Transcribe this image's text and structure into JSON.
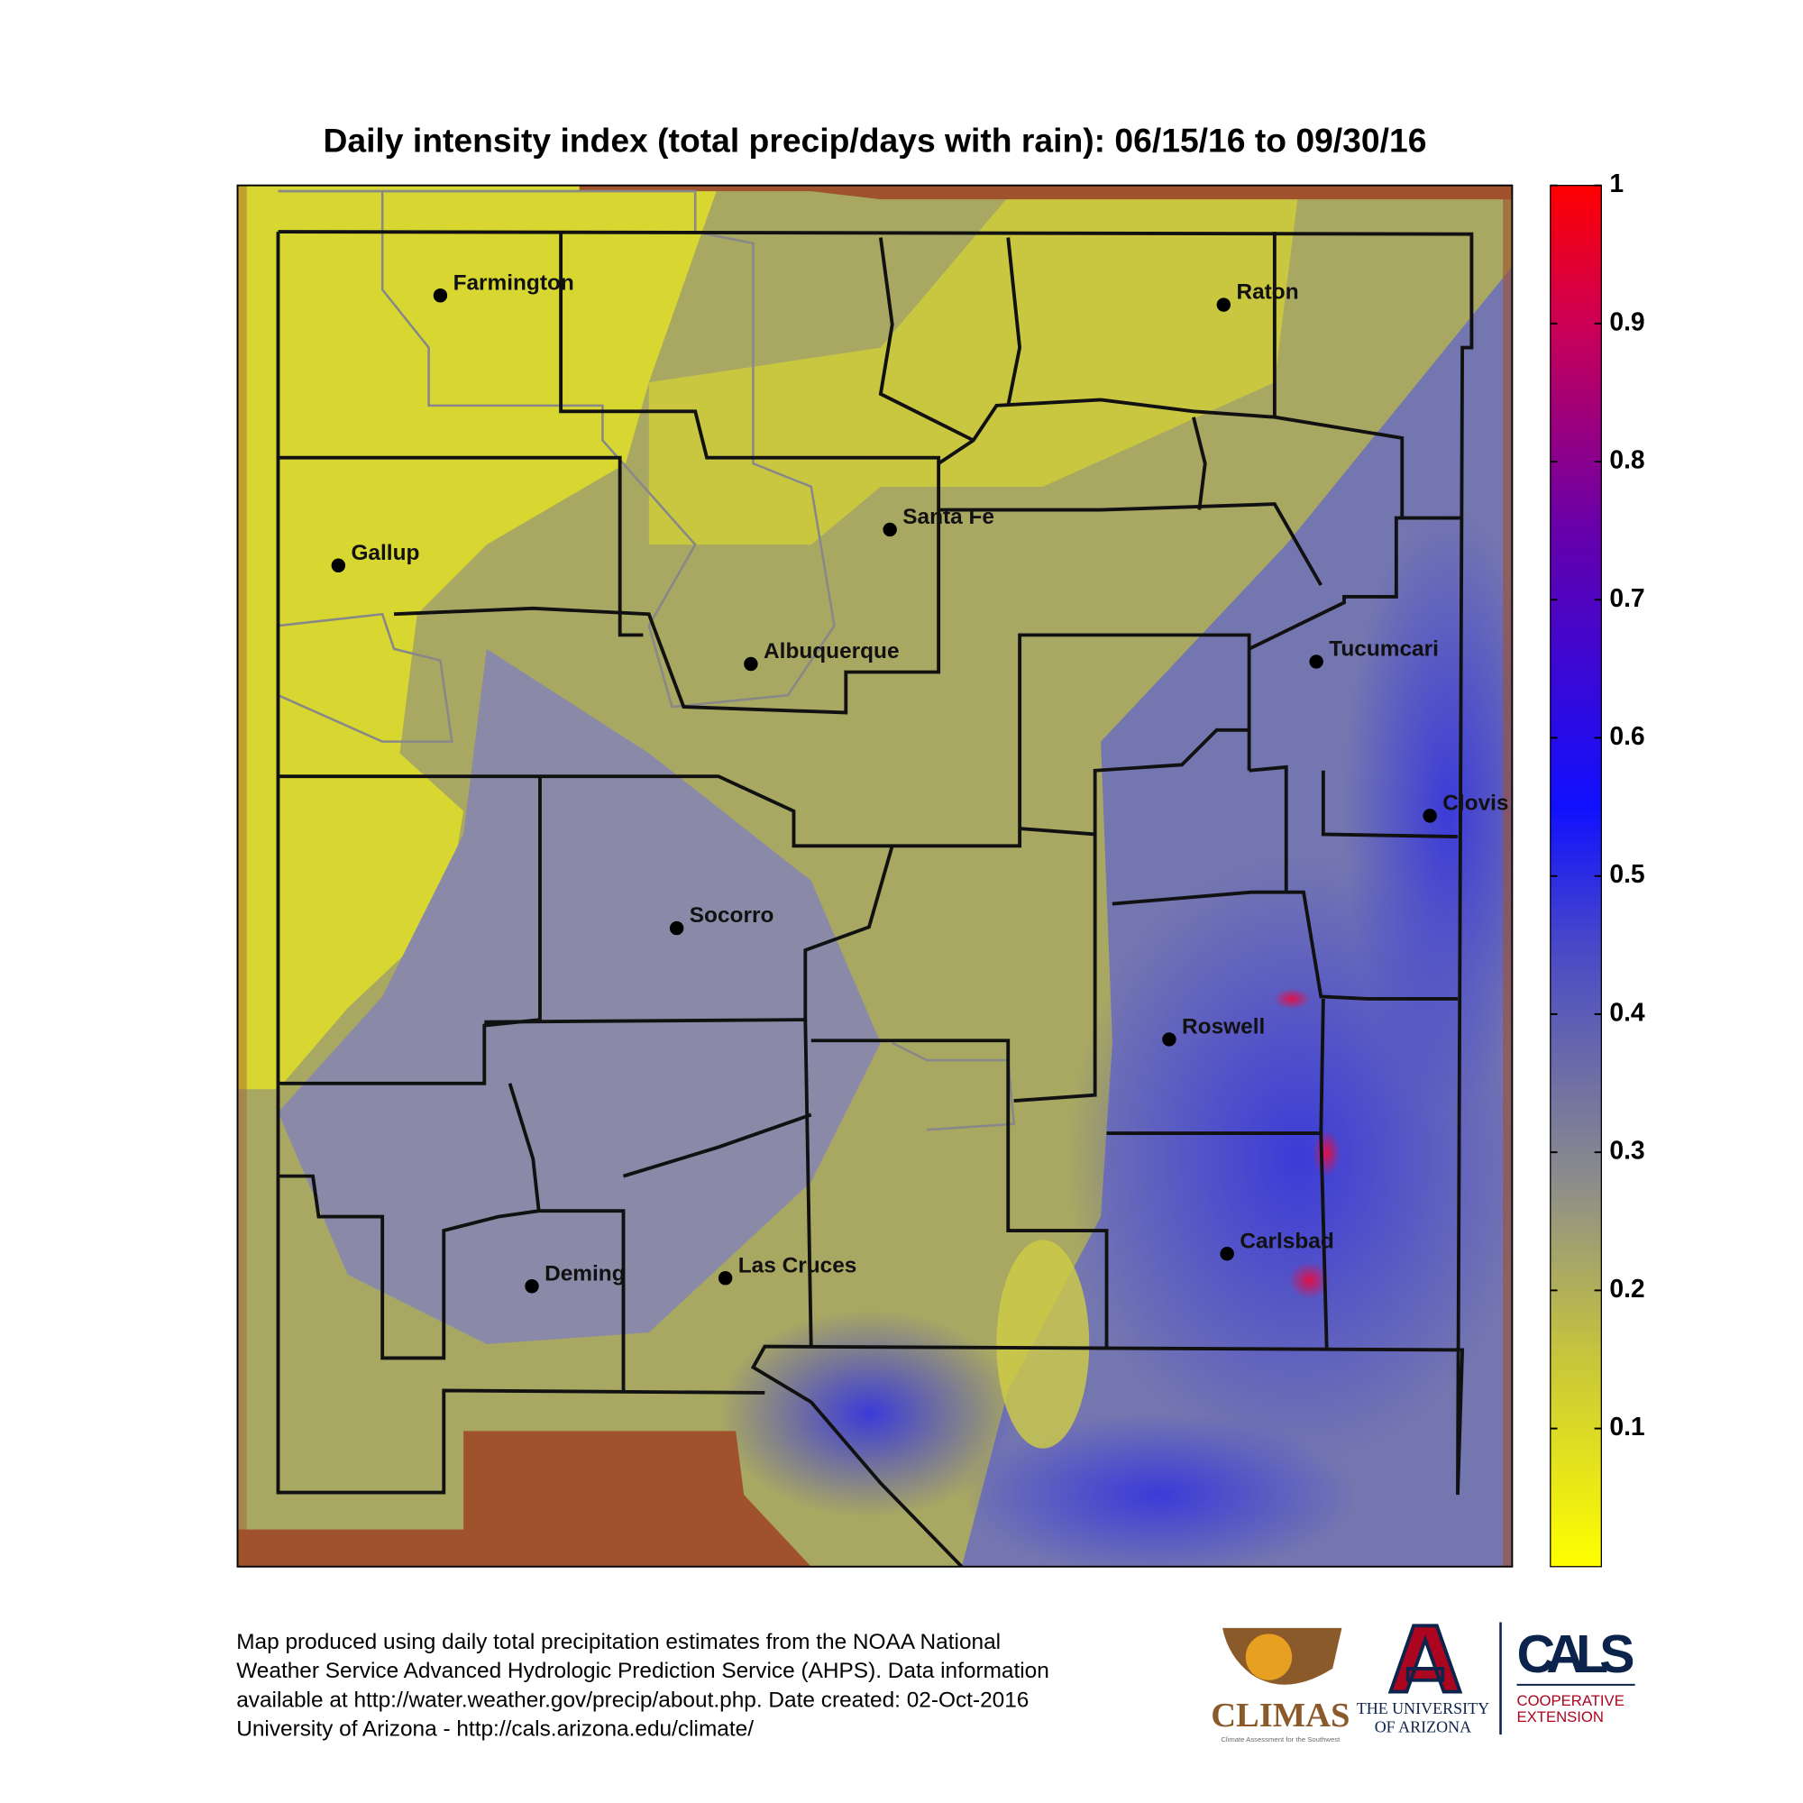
{
  "title": "Daily intensity index (total precip/days with rain): 06/15/16 to 09/30/16",
  "cities": [
    "Farmington",
    "Raton",
    "Santa Fe",
    "Gallup",
    "Albuquerque",
    "Tucumcari",
    "Clovis",
    "Socorro",
    "Roswell",
    "Carlsbad",
    "Deming",
    "Las Cruces"
  ],
  "colorbar": {
    "lim": [
      0,
      1
    ],
    "ticks": [
      0.1,
      0.2,
      0.3,
      0.4,
      0.5,
      0.6,
      0.7,
      0.8,
      0.9,
      1
    ]
  },
  "footer": [
    "Map produced using daily total precipitation estimates from the NOAA National",
    "Weather Service Advanced Hydrologic Prediction Service (AHPS). Data information",
    "available at http://water.weather.gov/precip/about.php. Date created: 02-Oct-2016",
    "University of Arizona - http://cals.arizona.edu/climate/"
  ],
  "logos": {
    "climas": "CLIMAS",
    "climas_sub": "Climate Assessment for the Southwest",
    "ua_line1": "THE UNIVERSITY",
    "ua_line2": "OF ARIZONA",
    "cals": "CALS",
    "cals_line1": "COOPERATIVE",
    "cals_line2": "EXTENSION"
  }
}
